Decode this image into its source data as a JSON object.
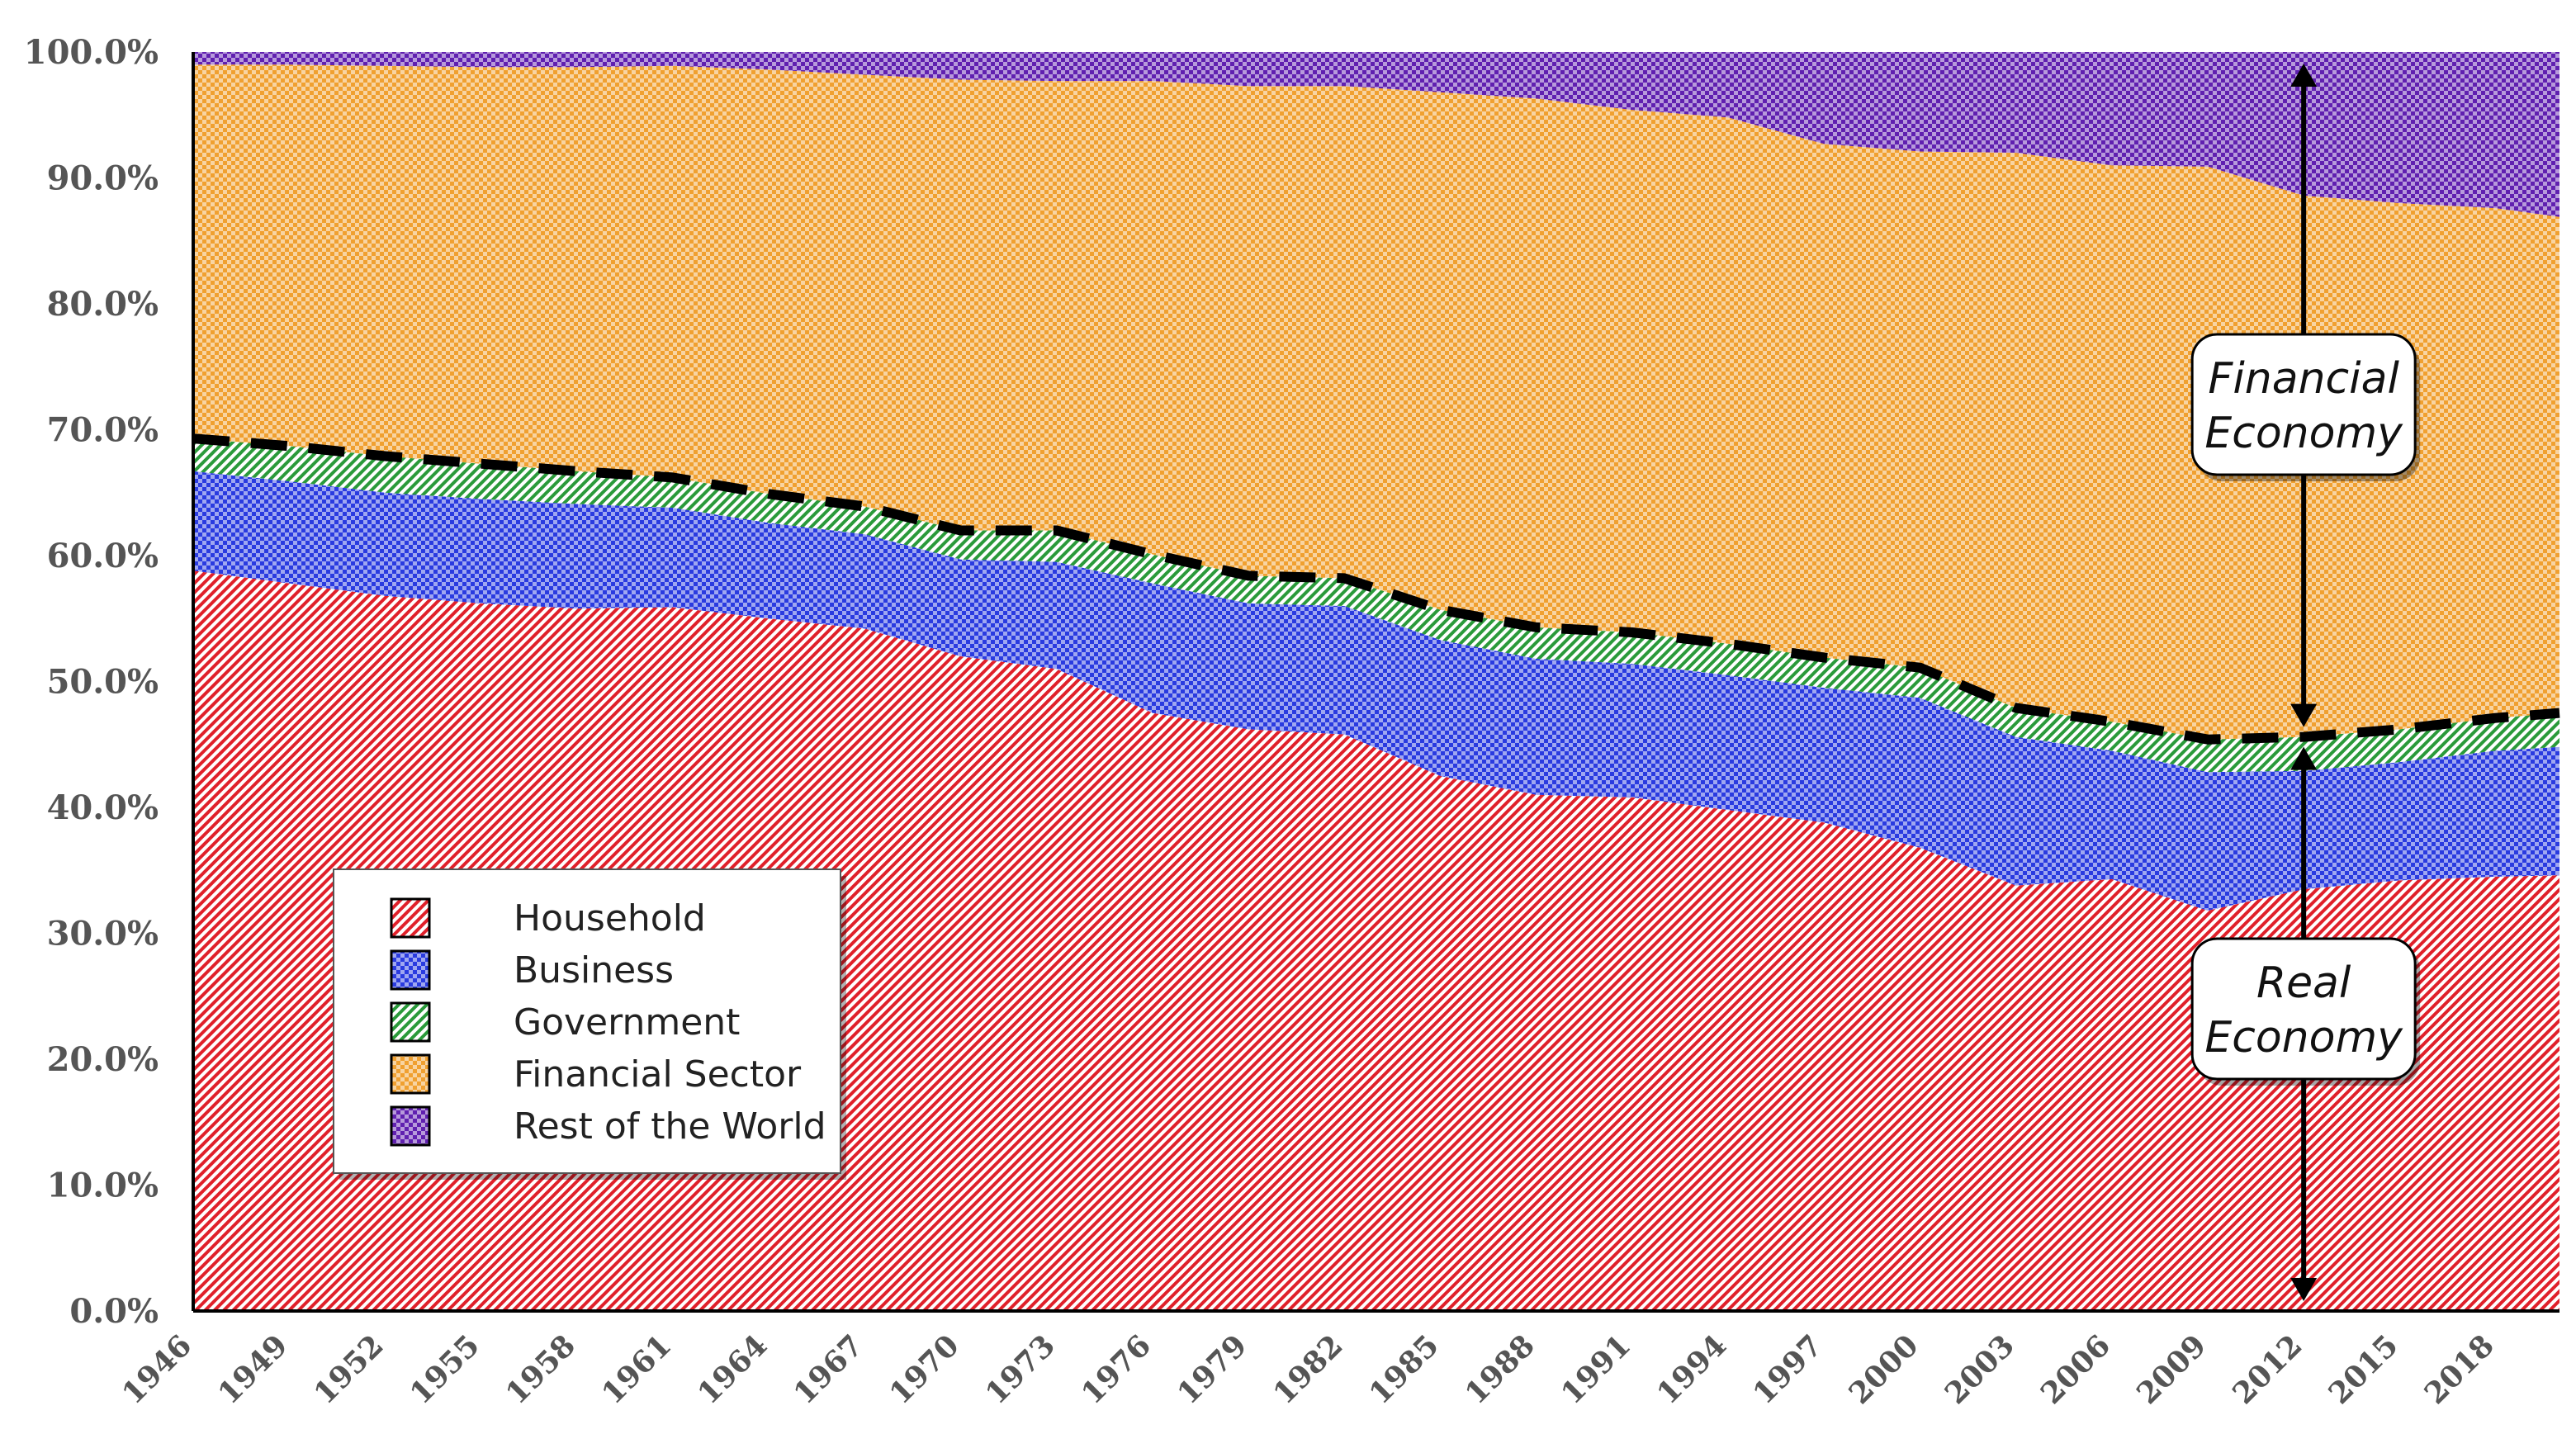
{
  "chart_data": {
    "type": "area",
    "stacked": true,
    "normalized_percent": true,
    "title": "",
    "xlabel": "",
    "ylabel": "",
    "ylim": [
      0,
      100
    ],
    "yticks": [
      "0.0%",
      "10.0%",
      "20.0%",
      "30.0%",
      "40.0%",
      "50.0%",
      "60.0%",
      "70.0%",
      "80.0%",
      "90.0%",
      "100.0%"
    ],
    "xticks": [
      "1946",
      "1949",
      "1952",
      "1955",
      "1958",
      "1961",
      "1964",
      "1967",
      "1970",
      "1973",
      "1976",
      "1979",
      "1982",
      "1985",
      "1988",
      "1991",
      "1994",
      "1997",
      "2000",
      "2003",
      "2006",
      "2009",
      "2012",
      "2015",
      "2018"
    ],
    "x": [
      1946,
      1949,
      1952,
      1955,
      1958,
      1961,
      1964,
      1967,
      1970,
      1973,
      1976,
      1979,
      1982,
      1985,
      1988,
      1991,
      1994,
      1997,
      2000,
      2003,
      2006,
      2009,
      2012,
      2015,
      2018,
      2020
    ],
    "series": [
      {
        "name": "Household",
        "color": "#e0202a",
        "pattern": "diagonal",
        "values": [
          58.8,
          57.8,
          56.8,
          56.2,
          55.8,
          55.9,
          55.0,
          54.2,
          52.0,
          51.0,
          47.5,
          46.2,
          45.8,
          42.5,
          41.0,
          40.8,
          39.8,
          38.8,
          36.8,
          33.8,
          34.3,
          31.8,
          33.5,
          34.2,
          34.5,
          34.6
        ]
      },
      {
        "name": "Business",
        "color": "#2a3be0",
        "pattern": "checker",
        "values": [
          7.9,
          8.1,
          8.2,
          8.3,
          8.3,
          7.9,
          7.6,
          7.5,
          7.7,
          8.5,
          10.3,
          10.0,
          10.2,
          10.8,
          10.8,
          10.6,
          10.7,
          10.7,
          11.9,
          11.8,
          10.2,
          11.0,
          9.4,
          9.4,
          10.0,
          10.2
        ]
      },
      {
        "name": "Government",
        "color": "#2a9a3a",
        "pattern": "diagonal",
        "values": [
          2.6,
          2.8,
          2.9,
          2.8,
          2.6,
          2.4,
          2.3,
          2.2,
          2.3,
          2.5,
          2.3,
          2.2,
          2.2,
          2.4,
          2.5,
          2.5,
          2.5,
          2.4,
          2.4,
          2.3,
          2.3,
          2.6,
          2.7,
          2.6,
          2.6,
          2.7
        ]
      },
      {
        "name": "Financial Sector",
        "color": "#f0a030",
        "pattern": "checker",
        "values": [
          29.7,
          30.3,
          31.0,
          31.5,
          32.1,
          32.7,
          33.7,
          34.3,
          35.8,
          35.7,
          37.6,
          38.9,
          39.1,
          41.1,
          42.0,
          41.5,
          41.8,
          40.8,
          41.0,
          44.1,
          44.2,
          45.5,
          43.0,
          41.8,
          40.5,
          39.4
        ]
      },
      {
        "name": "Rest of the World",
        "color": "#6020b0",
        "pattern": "checker",
        "values": [
          1.0,
          1.0,
          1.1,
          1.2,
          1.2,
          1.1,
          1.4,
          1.8,
          2.2,
          2.3,
          2.3,
          2.7,
          2.7,
          3.2,
          3.7,
          4.6,
          5.2,
          7.3,
          7.9,
          8.0,
          9.0,
          9.1,
          11.4,
          12.0,
          12.4,
          13.1
        ]
      }
    ],
    "divider_line": {
      "name": "Real / Financial boundary",
      "style": "dashed"
    },
    "legend_position": "lower-left",
    "annotations": [
      {
        "label_lines": [
          "Financial",
          "Economy"
        ],
        "x": 2012,
        "y": 72
      },
      {
        "label_lines": [
          "Real",
          "Economy"
        ],
        "x": 2012,
        "y": 24
      }
    ],
    "annotation_arrow_x": 2012
  }
}
